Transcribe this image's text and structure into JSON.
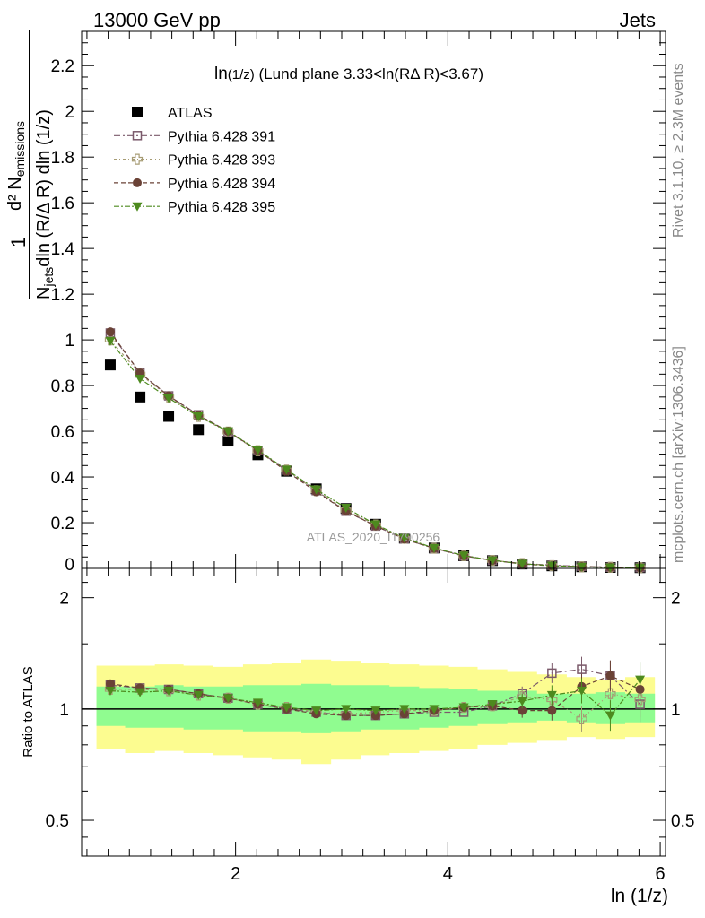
{
  "header": {
    "left": "13000 GeV pp",
    "right": "Jets"
  },
  "side_labels": {
    "rivet": "Rivet 3.1.10, ≥ 2.3M events",
    "mcplots": "mcplots.cern.ch [arXiv:1306.3436]"
  },
  "watermark": "ATLAS_2020_I1790256",
  "colors": {
    "atlas": "#000000",
    "p391": "#7b5a6b",
    "p393": "#a79c74",
    "p394": "#6a4236",
    "p395": "#4d8a1e",
    "band_inner": "#90fc90",
    "band_outer": "#fcfc90"
  },
  "chart_data": [
    {
      "type": "scatter",
      "panel": "main",
      "title": "ln(1/z) (Lund plane 3.33<ln(RΔ R)<3.67)",
      "title_parts": {
        "main": "ln",
        "sub": "(1/z)",
        "rest": " (Lund plane 3.33<ln(RΔ R)<3.67)"
      },
      "ylabel": {
        "prefix": "1",
        "num_main": "d² N",
        "num_sub": "emissions",
        "den_main": "N",
        "den_sub": "jets",
        "den_rest": "dln (R/Δ R) dln (1/z)"
      },
      "xlim": [
        0.55,
        6.05
      ],
      "ylim": [
        0,
        2.35
      ],
      "yticks": [
        0,
        0.2,
        0.4,
        0.6,
        0.8,
        1,
        1.2,
        1.4,
        1.6,
        1.8,
        2,
        2.2
      ],
      "ytick_labels": [
        "0",
        "0.2",
        "0.4",
        "0.6",
        "0.8",
        "1",
        "1.2",
        "1.4",
        "1.6",
        "1.8",
        "2",
        "2.2"
      ],
      "x": [
        0.82,
        1.1,
        1.37,
        1.65,
        1.93,
        2.21,
        2.48,
        2.76,
        3.04,
        3.32,
        3.59,
        3.87,
        4.15,
        4.42,
        4.7,
        4.98,
        5.26,
        5.53,
        5.81
      ],
      "series": [
        {
          "name": "ATLAS",
          "key": "atlas",
          "marker": "square-filled",
          "values": [
            0.89,
            0.75,
            0.665,
            0.607,
            0.557,
            0.497,
            0.425,
            0.348,
            0.262,
            0.193,
            0.132,
            0.089,
            0.055,
            0.034,
            0.019,
            0.011,
            0.007,
            0.004,
            0.003
          ]
        },
        {
          "name": "Pythia 6.428 391",
          "key": "p391",
          "marker": "square-open",
          "values": [
            1.03,
            0.855,
            0.755,
            0.672,
            0.597,
            0.515,
            0.43,
            0.34,
            0.25,
            0.185,
            0.129,
            0.087,
            0.054,
            0.035,
            0.021,
            0.014,
            0.009,
            0.005,
            0.003
          ]
        },
        {
          "name": "Pythia 6.428 393",
          "key": "p393",
          "marker": "cross-open",
          "values": [
            1.0,
            0.85,
            0.75,
            0.665,
            0.597,
            0.515,
            0.43,
            0.34,
            0.255,
            0.19,
            0.132,
            0.088,
            0.056,
            0.035,
            0.021,
            0.012,
            0.007,
            0.005,
            0.003
          ]
        },
        {
          "name": "Pythia 6.428 394",
          "key": "p394",
          "marker": "circle-filled",
          "values": [
            1.035,
            0.855,
            0.755,
            0.67,
            0.6,
            0.515,
            0.425,
            0.335,
            0.25,
            0.186,
            0.128,
            0.088,
            0.056,
            0.035,
            0.019,
            0.011,
            0.008,
            0.005,
            0.003
          ]
        },
        {
          "name": "Pythia 6.428 395",
          "key": "p395",
          "marker": "triangle-down-filled",
          "values": [
            0.995,
            0.83,
            0.745,
            0.665,
            0.6,
            0.518,
            0.432,
            0.345,
            0.265,
            0.192,
            0.133,
            0.089,
            0.056,
            0.035,
            0.02,
            0.012,
            0.007,
            0.004,
            0.003
          ]
        }
      ]
    },
    {
      "type": "scatter",
      "panel": "ratio",
      "ylabel": "Ratio to ATLAS",
      "xlabel": "ln (1/z)",
      "xlim": [
        0.55,
        6.05
      ],
      "ylim": [
        0.4,
        2.4
      ],
      "log_y": true,
      "xticks": [
        2,
        4,
        6
      ],
      "xtick_labels": [
        "2",
        "4",
        "6"
      ],
      "yticks": [
        0.5,
        1,
        2
      ],
      "ytick_labels": [
        "0.5",
        "1",
        "2"
      ],
      "bin_edges": [
        0.69,
        0.96,
        1.24,
        1.51,
        1.79,
        2.07,
        2.34,
        2.62,
        2.9,
        3.18,
        3.45,
        3.73,
        4.01,
        4.28,
        4.56,
        4.84,
        5.12,
        5.39,
        5.67,
        5.95
      ],
      "band_outer": {
        "low": [
          0.78,
          0.76,
          0.77,
          0.76,
          0.75,
          0.74,
          0.73,
          0.71,
          0.73,
          0.75,
          0.76,
          0.77,
          0.78,
          0.8,
          0.81,
          0.82,
          0.84,
          0.83,
          0.84
        ],
        "high": [
          1.31,
          1.31,
          1.32,
          1.31,
          1.3,
          1.32,
          1.33,
          1.36,
          1.35,
          1.33,
          1.32,
          1.31,
          1.3,
          1.28,
          1.26,
          1.24,
          1.22,
          1.2,
          1.22
        ]
      },
      "band_inner": {
        "low": [
          0.9,
          0.89,
          0.89,
          0.88,
          0.88,
          0.87,
          0.87,
          0.86,
          0.87,
          0.88,
          0.88,
          0.89,
          0.9,
          0.91,
          0.92,
          0.93,
          0.92,
          0.91,
          0.92
        ],
        "high": [
          1.15,
          1.15,
          1.16,
          1.15,
          1.15,
          1.16,
          1.16,
          1.17,
          1.16,
          1.16,
          1.15,
          1.14,
          1.13,
          1.12,
          1.12,
          1.1,
          1.1,
          1.11,
          1.1
        ]
      },
      "series": [
        {
          "name": "Pythia 6.428 391",
          "key": "p391",
          "marker": "square-open",
          "values": [
            1.16,
            1.14,
            1.13,
            1.1,
            1.07,
            1.03,
            1.0,
            0.98,
            0.96,
            0.96,
            0.97,
            0.98,
            0.98,
            1.02,
            1.1,
            1.25,
            1.28,
            1.23,
            1.03
          ]
        },
        {
          "name": "Pythia 6.428 393",
          "key": "p393",
          "marker": "cross-open",
          "values": [
            1.13,
            1.13,
            1.12,
            1.09,
            1.07,
            1.03,
            1.01,
            0.98,
            0.97,
            0.98,
            0.99,
            0.99,
            1.01,
            1.02,
            1.08,
            1.06,
            0.94,
            1.1,
            1.06
          ]
        },
        {
          "name": "Pythia 6.428 394",
          "key": "p394",
          "marker": "circle-filled",
          "values": [
            1.17,
            1.14,
            1.13,
            1.1,
            1.07,
            1.03,
            1.0,
            0.97,
            0.96,
            0.96,
            0.97,
            0.99,
            1.01,
            1.02,
            0.99,
            0.99,
            1.15,
            1.23,
            1.13
          ]
        },
        {
          "name": "Pythia 6.428 395",
          "key": "p395",
          "marker": "triangle-down-filled",
          "values": [
            1.12,
            1.11,
            1.12,
            1.09,
            1.07,
            1.04,
            1.01,
            0.99,
            1.0,
            0.99,
            1.0,
            1.0,
            1.01,
            1.03,
            1.05,
            1.09,
            1.12,
            0.96,
            1.2
          ]
        }
      ]
    }
  ]
}
